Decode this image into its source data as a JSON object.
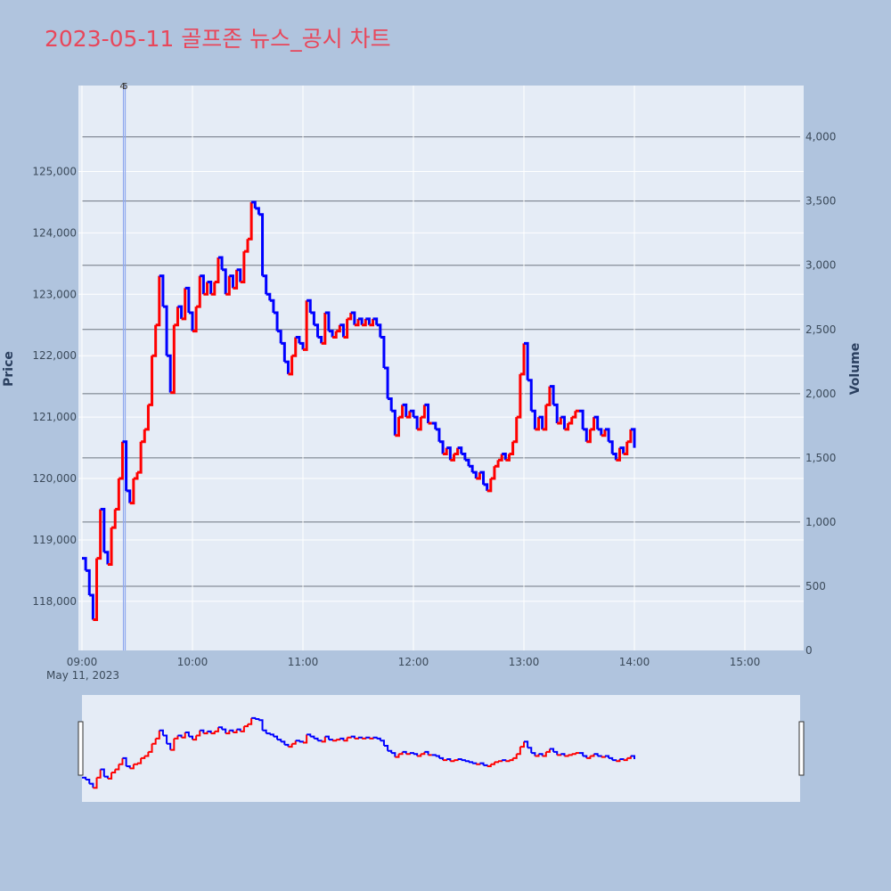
{
  "page": {
    "title": "2023-05-11 골프존 뉴스_공시 차트"
  },
  "chart_data": {
    "type": "line",
    "title": "2023-05-11 골프존 뉴스_공시 차트",
    "xlabel": "",
    "ylabel": "Price",
    "y2label": "Volume",
    "date_label": "May 11, 2023",
    "x_ticks": [
      "09:00",
      "10:00",
      "11:00",
      "12:00",
      "13:00",
      "14:00",
      "15:00"
    ],
    "x_range": [
      "09:00",
      "15:30"
    ],
    "y_ticks": [
      118000,
      119000,
      120000,
      121000,
      122000,
      123000,
      124000,
      125000
    ],
    "y_tick_labels": [
      "118,000",
      "119,000",
      "120,000",
      "121,000",
      "122,000",
      "123,000",
      "124,000",
      "125,000"
    ],
    "ylim": [
      117200,
      126400
    ],
    "y2_ticks": [
      0,
      500,
      1000,
      1500,
      2000,
      2500,
      3000,
      3500,
      4000
    ],
    "y2_tick_labels": [
      "0",
      "500",
      "1,000",
      "1,500",
      "2,000",
      "2,500",
      "3,000",
      "3,500",
      "4,000"
    ],
    "y2lim": [
      0,
      4400
    ],
    "grid": true,
    "colors": {
      "up": "#ff0000",
      "down": "#0000ff",
      "volume_up": "#f4a6a6",
      "volume_down": "#a6a6f4",
      "plot_bg": "#e5ecf6",
      "marker_line": "#8fa8ee"
    },
    "series": [
      {
        "name": "price",
        "points": [
          [
            "09:00",
            118700
          ],
          [
            "09:02",
            118500
          ],
          [
            "09:04",
            118100
          ],
          [
            "09:06",
            117700
          ],
          [
            "09:08",
            118700
          ],
          [
            "09:10",
            119500
          ],
          [
            "09:12",
            118800
          ],
          [
            "09:14",
            118600
          ],
          [
            "09:16",
            119200
          ],
          [
            "09:18",
            119500
          ],
          [
            "09:20",
            120000
          ],
          [
            "09:22",
            120600
          ],
          [
            "09:24",
            119800
          ],
          [
            "09:26",
            119600
          ],
          [
            "09:28",
            120000
          ],
          [
            "09:30",
            120100
          ],
          [
            "09:32",
            120600
          ],
          [
            "09:34",
            120800
          ],
          [
            "09:36",
            121200
          ],
          [
            "09:38",
            122000
          ],
          [
            "09:40",
            122500
          ],
          [
            "09:42",
            123300
          ],
          [
            "09:44",
            122800
          ],
          [
            "09:46",
            122000
          ],
          [
            "09:48",
            121400
          ],
          [
            "09:50",
            122500
          ],
          [
            "09:52",
            122800
          ],
          [
            "09:54",
            122600
          ],
          [
            "09:56",
            123100
          ],
          [
            "09:58",
            122700
          ],
          [
            "10:00",
            122400
          ],
          [
            "10:02",
            122800
          ],
          [
            "10:04",
            123300
          ],
          [
            "10:06",
            123000
          ],
          [
            "10:08",
            123200
          ],
          [
            "10:10",
            123000
          ],
          [
            "10:12",
            123200
          ],
          [
            "10:14",
            123600
          ],
          [
            "10:16",
            123400
          ],
          [
            "10:18",
            123000
          ],
          [
            "10:20",
            123300
          ],
          [
            "10:22",
            123100
          ],
          [
            "10:24",
            123400
          ],
          [
            "10:26",
            123200
          ],
          [
            "10:28",
            123700
          ],
          [
            "10:30",
            123900
          ],
          [
            "10:32",
            124500
          ],
          [
            "10:34",
            124400
          ],
          [
            "10:36",
            124300
          ],
          [
            "10:38",
            123300
          ],
          [
            "10:40",
            123000
          ],
          [
            "10:42",
            122900
          ],
          [
            "10:44",
            122700
          ],
          [
            "10:46",
            122400
          ],
          [
            "10:48",
            122200
          ],
          [
            "10:50",
            121900
          ],
          [
            "10:52",
            121700
          ],
          [
            "10:54",
            122000
          ],
          [
            "10:56",
            122300
          ],
          [
            "10:58",
            122200
          ],
          [
            "11:00",
            122100
          ],
          [
            "11:02",
            122900
          ],
          [
            "11:04",
            122700
          ],
          [
            "11:06",
            122500
          ],
          [
            "11:08",
            122300
          ],
          [
            "11:10",
            122200
          ],
          [
            "11:12",
            122700
          ],
          [
            "11:14",
            122400
          ],
          [
            "11:16",
            122300
          ],
          [
            "11:18",
            122400
          ],
          [
            "11:20",
            122500
          ],
          [
            "11:22",
            122300
          ],
          [
            "11:24",
            122600
          ],
          [
            "11:26",
            122700
          ],
          [
            "11:28",
            122500
          ],
          [
            "11:30",
            122600
          ],
          [
            "11:32",
            122500
          ],
          [
            "11:34",
            122600
          ],
          [
            "11:36",
            122500
          ],
          [
            "11:38",
            122600
          ],
          [
            "11:40",
            122500
          ],
          [
            "11:42",
            122300
          ],
          [
            "11:44",
            121800
          ],
          [
            "11:46",
            121300
          ],
          [
            "11:48",
            121100
          ],
          [
            "11:50",
            120700
          ],
          [
            "11:52",
            121000
          ],
          [
            "11:54",
            121200
          ],
          [
            "11:56",
            121000
          ],
          [
            "11:58",
            121100
          ],
          [
            "12:00",
            121000
          ],
          [
            "12:02",
            120800
          ],
          [
            "12:04",
            121000
          ],
          [
            "12:06",
            121200
          ],
          [
            "12:08",
            120900
          ],
          [
            "12:10",
            120900
          ],
          [
            "12:12",
            120800
          ],
          [
            "12:14",
            120600
          ],
          [
            "12:16",
            120400
          ],
          [
            "12:18",
            120500
          ],
          [
            "12:20",
            120300
          ],
          [
            "12:22",
            120400
          ],
          [
            "12:24",
            120500
          ],
          [
            "12:26",
            120400
          ],
          [
            "12:28",
            120300
          ],
          [
            "12:30",
            120200
          ],
          [
            "12:32",
            120100
          ],
          [
            "12:34",
            120000
          ],
          [
            "12:36",
            120100
          ],
          [
            "12:38",
            119900
          ],
          [
            "12:40",
            119800
          ],
          [
            "12:42",
            120000
          ],
          [
            "12:44",
            120200
          ],
          [
            "12:46",
            120300
          ],
          [
            "12:48",
            120400
          ],
          [
            "12:50",
            120300
          ],
          [
            "12:52",
            120400
          ],
          [
            "12:54",
            120600
          ],
          [
            "12:56",
            121000
          ],
          [
            "12:58",
            121700
          ],
          [
            "13:00",
            122200
          ],
          [
            "13:02",
            121600
          ],
          [
            "13:04",
            121100
          ],
          [
            "13:06",
            120800
          ],
          [
            "13:08",
            121000
          ],
          [
            "13:10",
            120800
          ],
          [
            "13:12",
            121200
          ],
          [
            "13:14",
            121500
          ],
          [
            "13:16",
            121200
          ],
          [
            "13:18",
            120900
          ],
          [
            "13:20",
            121000
          ],
          [
            "13:22",
            120800
          ],
          [
            "13:24",
            120900
          ],
          [
            "13:26",
            121000
          ],
          [
            "13:28",
            121100
          ],
          [
            "13:30",
            121100
          ],
          [
            "13:32",
            120800
          ],
          [
            "13:34",
            120600
          ],
          [
            "13:36",
            120800
          ],
          [
            "13:38",
            121000
          ],
          [
            "13:40",
            120800
          ],
          [
            "13:42",
            120700
          ],
          [
            "13:44",
            120800
          ],
          [
            "13:46",
            120600
          ],
          [
            "13:48",
            120400
          ],
          [
            "13:50",
            120300
          ],
          [
            "13:52",
            120500
          ],
          [
            "13:54",
            120400
          ],
          [
            "13:56",
            120600
          ],
          [
            "13:58",
            120800
          ],
          [
            "14:00",
            120500
          ]
        ]
      },
      {
        "name": "volume",
        "values": []
      }
    ],
    "news_markers": [
      {
        "x": "09:23",
        "labels": [
          "4",
          "5"
        ]
      }
    ]
  }
}
